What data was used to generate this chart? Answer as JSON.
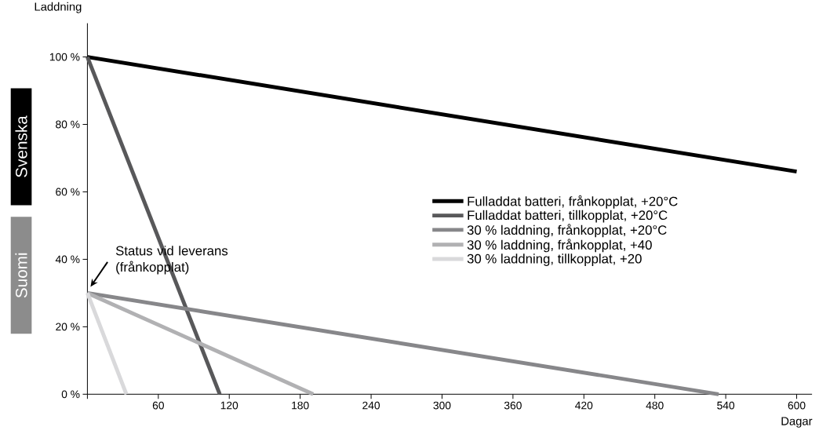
{
  "chart_data": {
    "type": "line",
    "xlabel": "Dagar",
    "ylabel": "Laddning",
    "xlim": [
      0,
      613
    ],
    "ylim": [
      0,
      110
    ],
    "xticks": [
      {
        "value": 0,
        "label": null
      },
      60,
      120,
      180,
      240,
      300,
      360,
      420,
      480,
      540,
      600
    ],
    "yticks": [
      {
        "value": 0,
        "label": "0 %"
      },
      {
        "value": 20,
        "label": "20 %"
      },
      {
        "value": 40,
        "label": "40 %"
      },
      {
        "value": 60,
        "label": "60 %"
      },
      {
        "value": 80,
        "label": "80 %"
      },
      {
        "value": 100,
        "label": "100 %"
      }
    ],
    "legend": "right",
    "series": [
      {
        "name": "Fulladdat batteri, frånkopplat, +20°C",
        "color": "#000000",
        "x": [
          0,
          600
        ],
        "values": [
          100,
          66
        ]
      },
      {
        "name": "Fulladdat batteri, tillkopplat, +20°C",
        "color": "#58585a",
        "x": [
          0,
          112
        ],
        "values": [
          100,
          0
        ]
      },
      {
        "name": "30 % laddning, frånkopplat, +20°C",
        "color": "#87878a",
        "x": [
          0,
          534
        ],
        "values": [
          30,
          0
        ]
      },
      {
        "name": "30 % laddning, frånkopplat, +40",
        "color": "#b1b1b3",
        "x": [
          0,
          191
        ],
        "values": [
          30,
          0
        ]
      },
      {
        "name": "30 % laddning, tillkopplat, +20",
        "color": "#d9d9db",
        "x": [
          0,
          33
        ],
        "values": [
          30,
          0
        ]
      }
    ],
    "annotations": [
      {
        "text": "Status vid leverans (frånkopplat)",
        "x": 0,
        "y": 30
      },
      "Svenska",
      "Suomi"
    ]
  }
}
